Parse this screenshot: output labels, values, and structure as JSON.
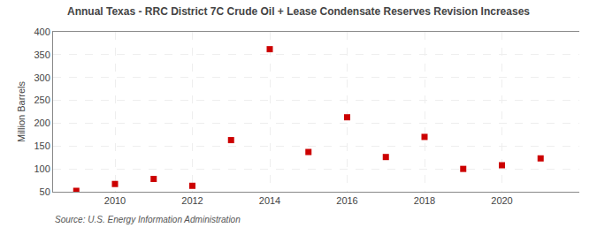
{
  "chart_data": {
    "type": "scatter",
    "title": "Annual Texas - RRC District 7C Crude Oil + Lease Condensate Reserves Revision Increases",
    "ylabel": "Million Barrels",
    "annotations": [
      "Source: U.S. Energy Information Administration"
    ],
    "x": [
      2009,
      2010,
      2011,
      2012,
      2013,
      2014,
      2015,
      2016,
      2017,
      2018,
      2019,
      2020,
      2021
    ],
    "values": [
      52,
      67,
      78,
      63,
      163,
      362,
      137,
      213,
      126,
      170,
      100,
      108,
      123
    ],
    "color": "#cc0000",
    "marker": "square",
    "xlim": [
      2008.4,
      2022.0
    ],
    "xticks": [
      2010,
      2012,
      2014,
      2016,
      2018,
      2020
    ],
    "ylim": [
      50,
      400
    ],
    "yticks": [
      50,
      100,
      150,
      200,
      250,
      300,
      350,
      400
    ],
    "grid": true
  }
}
